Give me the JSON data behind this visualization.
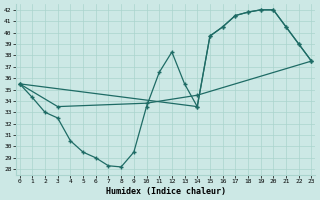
{
  "xlabel": "Humidex (Indice chaleur)",
  "xlim": [
    -0.3,
    23.3
  ],
  "ylim": [
    27.5,
    42.5
  ],
  "xticks": [
    0,
    1,
    2,
    3,
    4,
    5,
    6,
    7,
    8,
    9,
    10,
    11,
    12,
    13,
    14,
    15,
    16,
    17,
    18,
    19,
    20,
    21,
    22,
    23
  ],
  "yticks": [
    28,
    29,
    30,
    31,
    32,
    33,
    34,
    35,
    36,
    37,
    38,
    39,
    40,
    41,
    42
  ],
  "bg_color": "#cce8e5",
  "line_color": "#1e6b65",
  "grid_color": "#aad4ce",
  "curve1_x": [
    0,
    1,
    2,
    3,
    4,
    5,
    6,
    7,
    8,
    9,
    10,
    11,
    12,
    13,
    14,
    15,
    16,
    17,
    18,
    19,
    20,
    21,
    22,
    23
  ],
  "curve1_y": [
    35.5,
    34.3,
    33.0,
    32.5,
    30.5,
    29.5,
    29.0,
    28.3,
    28.2,
    29.5,
    33.5,
    36.5,
    38.3,
    35.5,
    33.5,
    39.7,
    40.5,
    41.5,
    41.8,
    42.0,
    42.0,
    40.5,
    39.0,
    37.5
  ],
  "curve2_x": [
    0,
    3,
    10,
    14,
    23
  ],
  "curve2_y": [
    35.5,
    33.5,
    33.8,
    34.5,
    37.5
  ],
  "curve3_x": [
    0,
    14,
    15,
    16,
    17,
    18,
    19,
    20,
    21,
    22,
    23
  ],
  "curve3_y": [
    35.5,
    33.5,
    39.7,
    40.5,
    41.5,
    41.8,
    42.0,
    42.0,
    40.5,
    39.0,
    37.5
  ]
}
